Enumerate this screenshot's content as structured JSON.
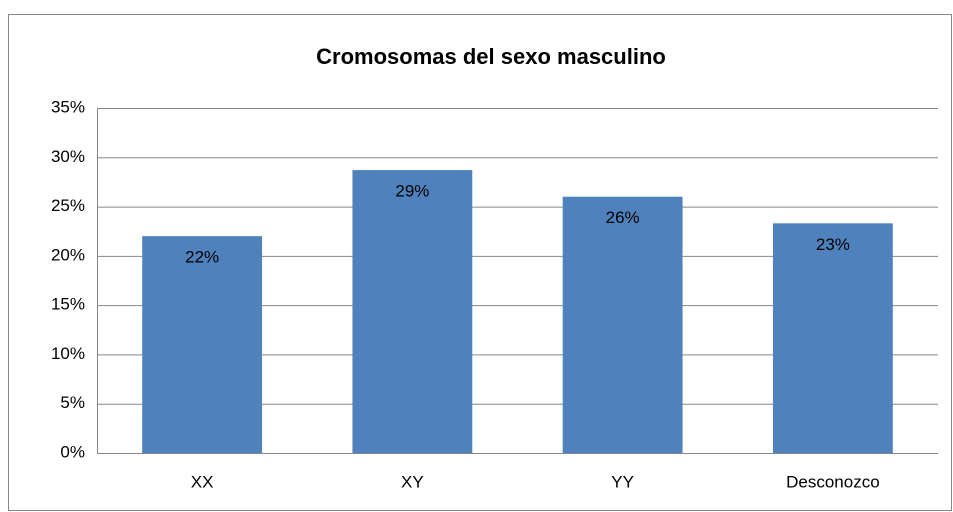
{
  "chart_data": {
    "type": "bar",
    "title": "Cromosomas del sexo masculino",
    "categories": [
      "XX",
      "XY",
      "YY",
      "Desconozco"
    ],
    "values": [
      22,
      28.7,
      26,
      23.3
    ],
    "value_labels": [
      "22%",
      "29%",
      "26%",
      "23%"
    ],
    "color": "#4f81bd",
    "ylim": [
      0,
      35
    ],
    "yticks": [
      {
        "value": 0,
        "label": "0%"
      },
      {
        "value": 5,
        "label": "5%"
      },
      {
        "value": 10,
        "label": "10%"
      },
      {
        "value": 15,
        "label": "15%"
      },
      {
        "value": 20,
        "label": "20%"
      },
      {
        "value": 25,
        "label": "25%"
      },
      {
        "value": 30,
        "label": "30%"
      },
      {
        "value": 35,
        "label": "35%"
      }
    ],
    "grid": true
  }
}
